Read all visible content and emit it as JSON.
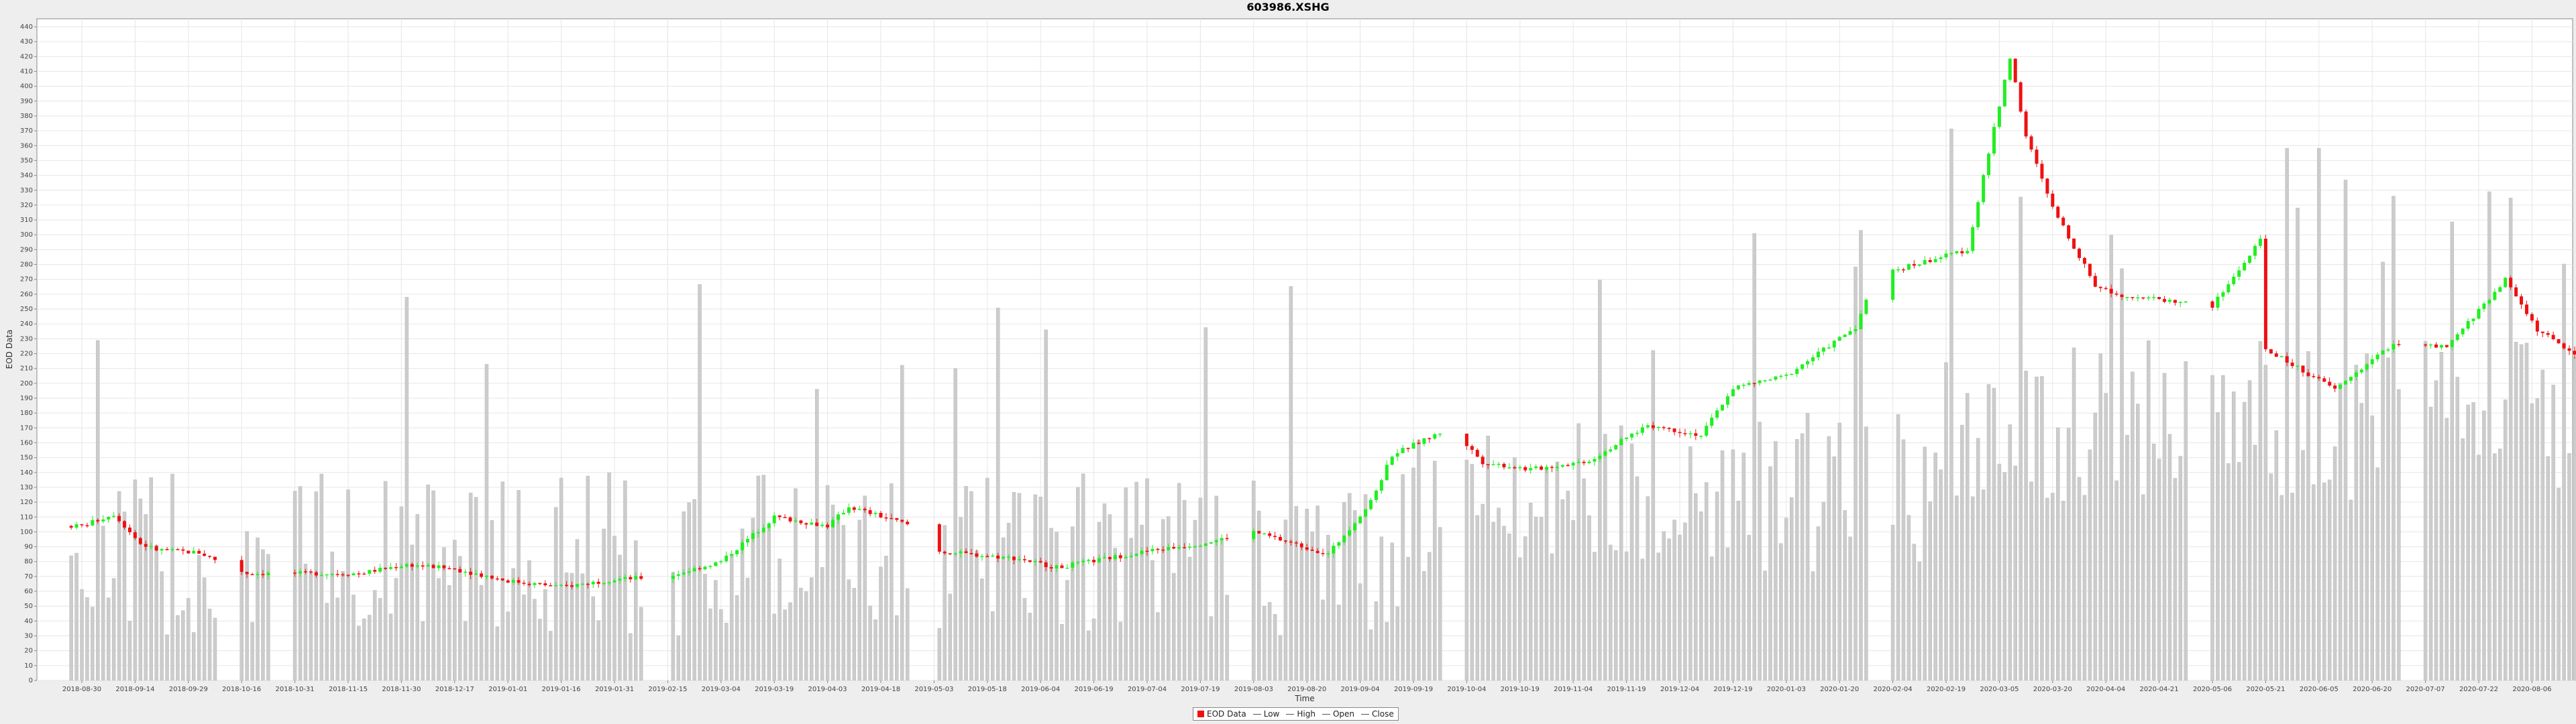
{
  "chart_data": {
    "type": "candlestick",
    "title": "603986.XSHG",
    "xlabel": "Time",
    "ylabel": "EOD Data",
    "ylim": [
      0,
      440
    ],
    "y_ticks": [
      0,
      10,
      20,
      30,
      40,
      50,
      60,
      70,
      80,
      90,
      100,
      110,
      120,
      130,
      140,
      150,
      160,
      170,
      180,
      190,
      200,
      210,
      220,
      230,
      240,
      250,
      260,
      270,
      280,
      290,
      300,
      310,
      320,
      330,
      340,
      350,
      360,
      370,
      380,
      390,
      400,
      410,
      420,
      430,
      440
    ],
    "x_tick_labels": [
      "2018-08-30",
      "2018-09-14",
      "2018-09-29",
      "2018-10-16",
      "2018-10-31",
      "2018-11-15",
      "2018-11-30",
      "2018-12-17",
      "2019-01-01",
      "2019-01-16",
      "2019-01-31",
      "2019-02-15",
      "2019-03-04",
      "2019-03-19",
      "2019-04-03",
      "2019-04-18",
      "2019-05-03",
      "2019-05-18",
      "2019-06-04",
      "2019-06-19",
      "2019-07-04",
      "2019-07-19",
      "2019-08-03",
      "2019-08-20",
      "2019-09-04",
      "2019-09-19",
      "2019-10-04",
      "2019-10-19",
      "2019-11-04",
      "2019-11-19",
      "2019-12-04",
      "2019-12-19",
      "2020-01-03",
      "2020-01-20",
      "2020-02-04",
      "2020-02-19",
      "2020-03-05",
      "2020-03-20",
      "2020-04-04",
      "2020-04-21",
      "2020-05-06",
      "2020-05-21",
      "2020-06-05",
      "2020-06-20",
      "2020-07-07",
      "2020-07-22",
      "2020-08-06"
    ],
    "gaps_after_tick": [
      2,
      3,
      10,
      15,
      21,
      25,
      33,
      39,
      43
    ],
    "close_path": [
      [
        0,
        104
      ],
      [
        0.6,
        112
      ],
      [
        1.1,
        92
      ],
      [
        1.4,
        88
      ],
      [
        2.2,
        86
      ],
      [
        3.1,
        72
      ],
      [
        3.8,
        72
      ],
      [
        5.2,
        72
      ],
      [
        6.1,
        78
      ],
      [
        7,
        75
      ],
      [
        8,
        67
      ],
      [
        9,
        63
      ],
      [
        10,
        68
      ],
      [
        11,
        70
      ],
      [
        12,
        80
      ],
      [
        13,
        110
      ],
      [
        14,
        104
      ],
      [
        14.4,
        117
      ],
      [
        15.5,
        105
      ],
      [
        16,
        87
      ],
      [
        17.6,
        82
      ],
      [
        18.3,
        76
      ],
      [
        20,
        87
      ],
      [
        21,
        92
      ],
      [
        22,
        100
      ],
      [
        23.4,
        85
      ],
      [
        24.2,
        120
      ],
      [
        24.6,
        152
      ],
      [
        25.7,
        170
      ],
      [
        26.3,
        147
      ],
      [
        27.2,
        142
      ],
      [
        28.3,
        148
      ],
      [
        29.4,
        172
      ],
      [
        30.4,
        165
      ],
      [
        31,
        197
      ],
      [
        32,
        205
      ],
      [
        33.3,
        238
      ],
      [
        33.7,
        273
      ],
      [
        35.4,
        290
      ],
      [
        36.2,
        420
      ],
      [
        36.5,
        366
      ],
      [
        37,
        318
      ],
      [
        37.8,
        266
      ],
      [
        38.2,
        260
      ],
      [
        40,
        252
      ],
      [
        40.9,
        296
      ],
      [
        41,
        223
      ],
      [
        42.3,
        196
      ],
      [
        43.4,
        227
      ],
      [
        44.4,
        224
      ],
      [
        45.5,
        270
      ],
      [
        46.1,
        236
      ],
      [
        47,
        215
      ],
      [
        47.4,
        211
      ]
    ],
    "volume_note": "light grey volume bars underlay each trading day",
    "legend": [
      {
        "label": "EOD Data",
        "style": "box"
      },
      {
        "label": "Low",
        "style": "line"
      },
      {
        "label": "High",
        "style": "line"
      },
      {
        "label": "Open",
        "style": "line"
      },
      {
        "label": "Close",
        "style": "line"
      }
    ],
    "colors": {
      "up": "#22ee22",
      "down": "#ee1111",
      "volume": "#cccccc",
      "close_line": "#8a8a3a",
      "grid": "#e6e6e6"
    },
    "grid": true,
    "legend_position": "bottom-center"
  }
}
